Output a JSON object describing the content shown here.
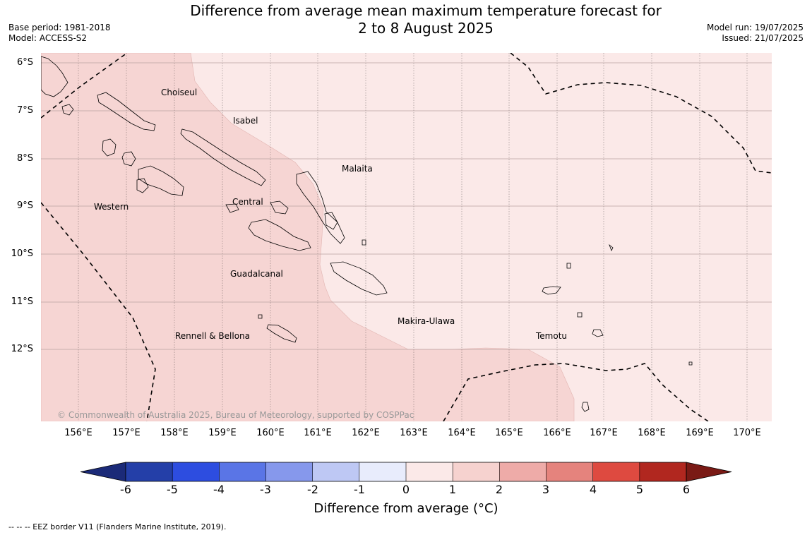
{
  "title_line1": "Difference from average mean maximum temperature forecast for",
  "title_line2": "2 to 8 August 2025",
  "base_period": "Base period: 1981-2018",
  "model": "Model: ACCESS-S2",
  "model_run": "Model run: 19/07/2025",
  "issued": "Issued: 21/07/2025",
  "lat_labels": [
    "6°S",
    "7°S",
    "8°S",
    "9°S",
    "10°S",
    "11°S",
    "12°S"
  ],
  "lon_labels": [
    "156°E",
    "157°E",
    "158°E",
    "159°E",
    "160°E",
    "161°E",
    "162°E",
    "163°E",
    "164°E",
    "165°E",
    "166°E",
    "167°E",
    "168°E",
    "169°E",
    "170°E"
  ],
  "places": {
    "choiseul": "Choiseul",
    "isabel": "Isabel",
    "malaita": "Malaita",
    "western": "Western",
    "central": "Central",
    "guadalcanal": "Guadalcanal",
    "makira": "Makira-Ulawa",
    "rennell": "Rennell & Bellona",
    "temotu": "Temotu"
  },
  "copyright": "© Commonwealth of Australia 2025, Bureau of Meteorology, supported by COSPPac",
  "colorbar": {
    "ticks": [
      "-6",
      "-5",
      "-4",
      "-3",
      "-2",
      "-1",
      "0",
      "1",
      "2",
      "3",
      "4",
      "5",
      "6"
    ],
    "colors": [
      "#243fa8",
      "#2d4de0",
      "#5a75e6",
      "#8698ec",
      "#bec8f4",
      "#e8ecfc",
      "#fbe9e8",
      "#f6d2cf",
      "#eeaba8",
      "#e5837d",
      "#de4a40",
      "#b1271f"
    ],
    "under_color": "#1b2a78",
    "over_color": "#7a1a15",
    "label": "Difference from average (°C)"
  },
  "map_colors": {
    "anomaly_0_to_1": "#fbe9e8",
    "anomaly_1_to_2": "#f6d5d3"
  },
  "footnote": "-- -- -- EEZ border V11 (Flanders Marine Institute, 2019)."
}
